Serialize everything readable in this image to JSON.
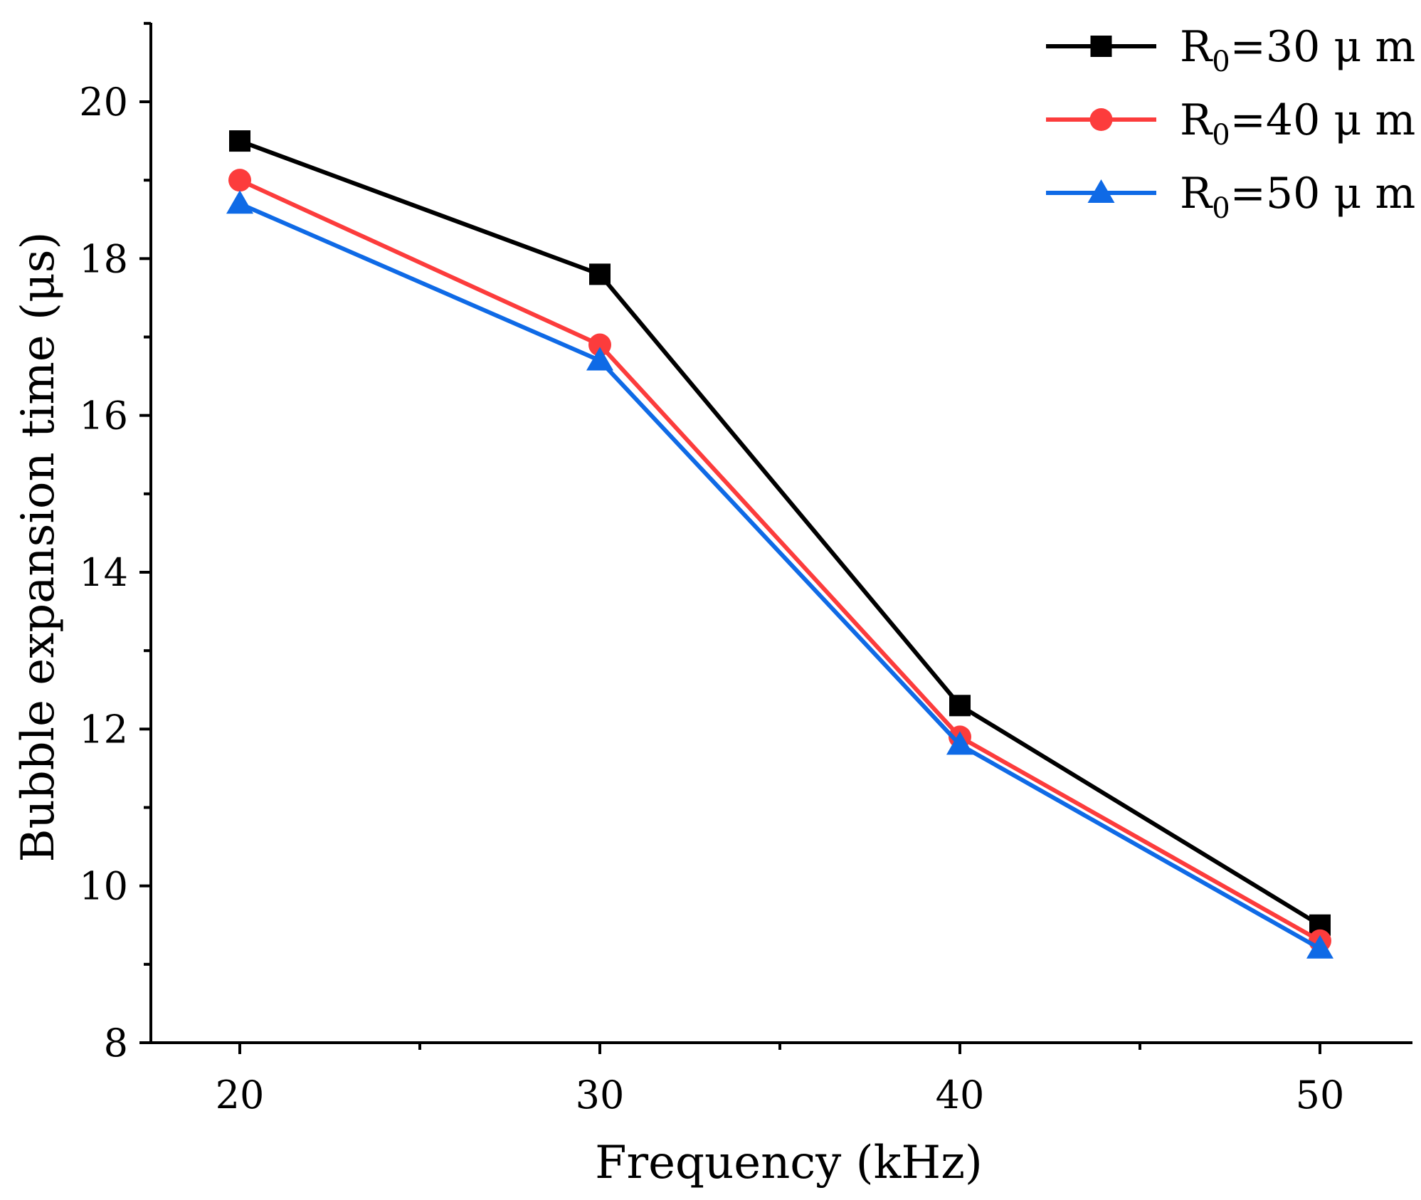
{
  "chart_data": {
    "type": "line",
    "title": "",
    "xlabel": "Frequency (kHz)",
    "ylabel": "Bubble expansion time (μs)",
    "x": [
      20,
      30,
      40,
      50
    ],
    "xlim": [
      17.5,
      52.5
    ],
    "ylim": [
      8,
      21
    ],
    "xticks": [
      20,
      30,
      40,
      50
    ],
    "xtick_labels": [
      "20",
      "30",
      "40",
      "50"
    ],
    "xminor": [
      25,
      35,
      45
    ],
    "yticks": [
      8,
      10,
      12,
      14,
      16,
      18,
      20
    ],
    "ytick_labels": [
      "8",
      "10",
      "12",
      "14",
      "16",
      "18",
      "20"
    ],
    "yminor": [
      9,
      11,
      13,
      15,
      17,
      19,
      21
    ],
    "grid": false,
    "legend_position": "top-right",
    "series": [
      {
        "name": "R0=30 μm",
        "label_main": "R",
        "label_sub": "0",
        "label_rest": "=30 μ m",
        "color": "#000000",
        "marker": "square",
        "values": [
          19.5,
          17.8,
          12.3,
          9.5
        ]
      },
      {
        "name": "R0=40 μm",
        "label_main": "R",
        "label_sub": "0",
        "label_rest": "=40 μ m",
        "color": "#fc3c3c",
        "marker": "circle",
        "values": [
          19.0,
          16.9,
          11.9,
          9.3
        ]
      },
      {
        "name": "R0=50 μm",
        "label_main": "R",
        "label_sub": "0",
        "label_rest": "=50 μ m",
        "color": "#0f6ae6",
        "marker": "triangle",
        "values": [
          18.7,
          16.7,
          11.8,
          9.2
        ]
      }
    ]
  }
}
